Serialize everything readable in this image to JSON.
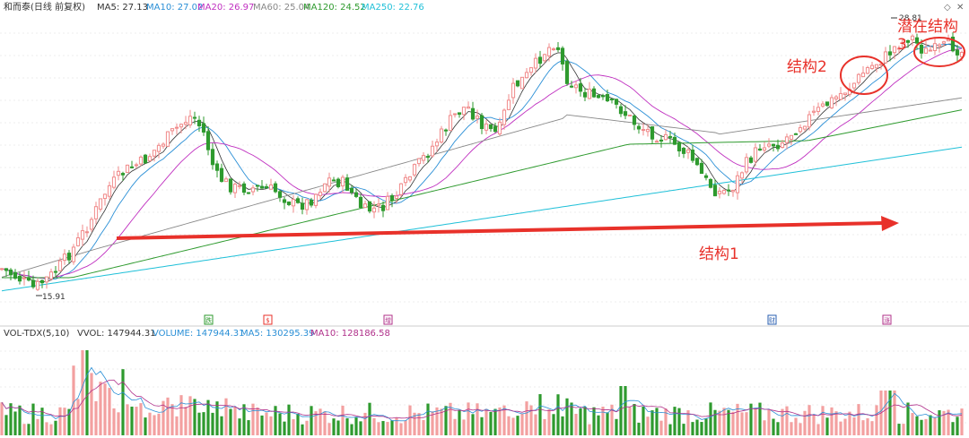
{
  "header": {
    "title": "和而泰(日线 前复权)",
    "ma": [
      {
        "label": "MA5: 27.13",
        "color": "#333333"
      },
      {
        "label": "MA10: 27.02",
        "color": "#2a8fd6"
      },
      {
        "label": "MA20: 26.97",
        "color": "#c030c0"
      },
      {
        "label": "MA60: 25.04",
        "color": "#888888"
      },
      {
        "label": "MA120: 24.52",
        "color": "#2e9a2e"
      },
      {
        "label": "MA250: 22.76",
        "color": "#20c0d8"
      }
    ]
  },
  "volume_header": {
    "indicator": "VOL-TDX(5,10)",
    "vvol": "VVOL: 147944.31",
    "volume": "VOLUME: 147944.31",
    "ma5": "MA5: 130295.39",
    "ma10": "MA10: 128186.58"
  },
  "markers": [
    {
      "label": "R",
      "glyph": "跌",
      "color": "#2e9a2e"
    },
    {
      "label": "s",
      "glyph": "$",
      "color": "#e8312a"
    },
    {
      "label": "z",
      "glyph": "增",
      "color": "#b0308a"
    },
    {
      "label": "c",
      "glyph": "财",
      "color": "#2a5fb0"
    },
    {
      "label": "u",
      "glyph": "涨",
      "color": "#b0308a"
    }
  ],
  "annotations": {
    "structure1": "结构1",
    "structure2": "结构2",
    "structure3_line1": "潜在结构",
    "structure3_line2": "3",
    "low_label": "15.91",
    "high_label": "28.81"
  },
  "colors": {
    "up": "#f08a8a",
    "down": "#2e9a2e",
    "arrow": "#e8312a",
    "grid": "#e4e4e4"
  },
  "chart_data": {
    "type": "candlestick",
    "price_range": [
      15.0,
      29.5
    ],
    "low_point": 15.91,
    "high_point": 28.81,
    "ma_latest": {
      "MA5": 27.13,
      "MA10": 27.02,
      "MA20": 26.97,
      "MA60": 25.04,
      "MA120": 24.52,
      "MA250": 22.76
    },
    "volume_latest": {
      "VOLUME": 147944.31,
      "MA5": 130295.39,
      "MA10": 128186.58
    }
  }
}
